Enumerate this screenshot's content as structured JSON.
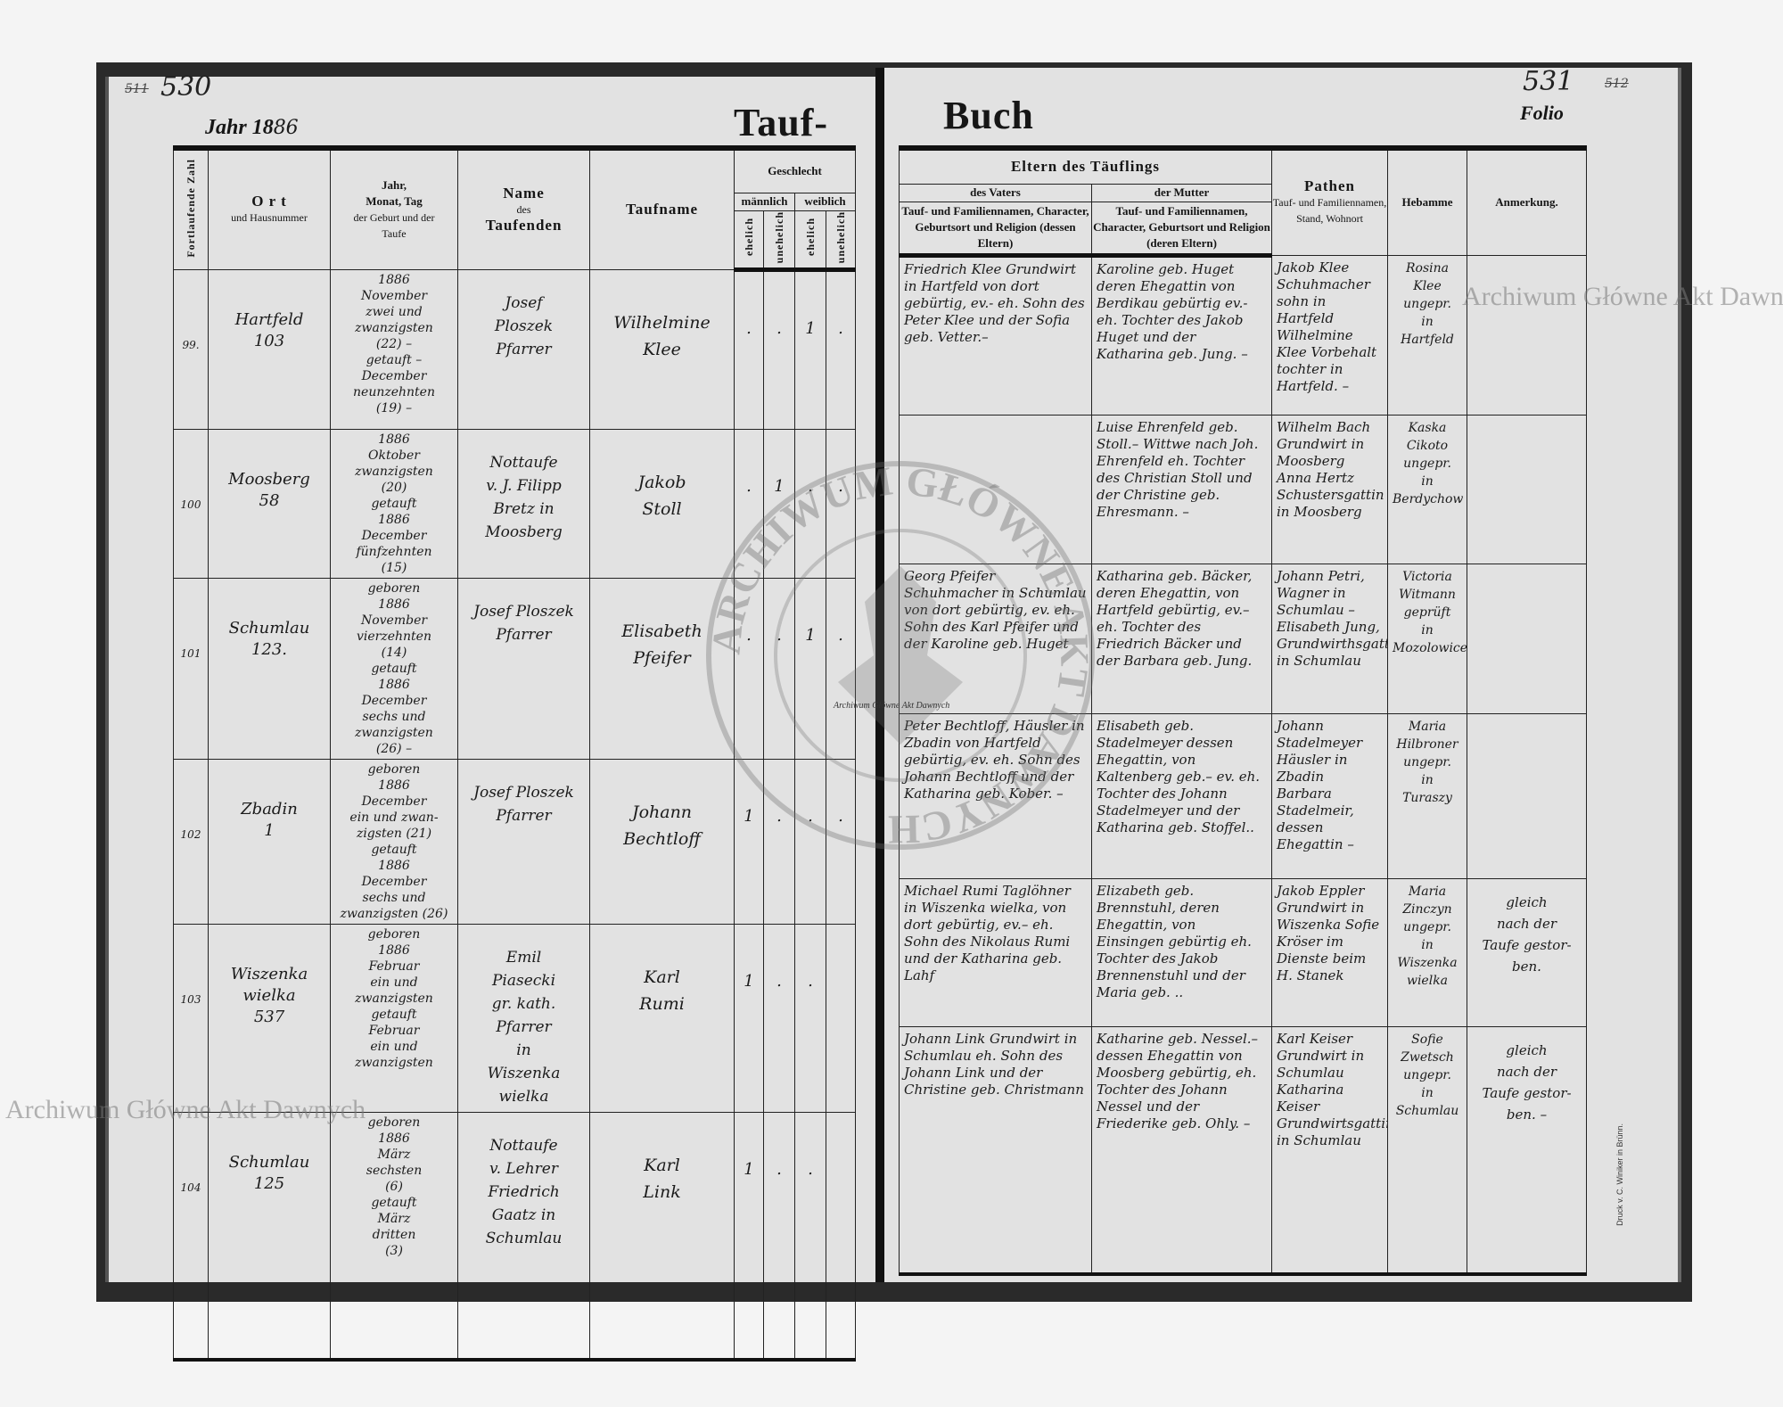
{
  "left_page": {
    "page_number": "530",
    "old_page_number": "511",
    "year_label": "Jahr 18",
    "year_handwritten": "86",
    "title_part": "Tauf-"
  },
  "right_page": {
    "page_number": "531",
    "old_page_number": "512",
    "title_part": "Buch",
    "folio_label": "Folio"
  },
  "headers": {
    "nr": "Fortlaufende Zahl",
    "ort_1": "O r t",
    "ort_2": "und Hausnummer",
    "date_1": "Jahr,",
    "date_2": "Monat, Tag",
    "date_3": "der Geburt und der",
    "date_4": "Taufe",
    "name_1": "Name",
    "name_2": "des",
    "name_3": "Taufenden",
    "taufname": "Taufname",
    "geschlecht": "Geschlecht",
    "maennlich": "männlich",
    "weiblich": "weiblich",
    "ehelich": "ehelich",
    "unehelich": "unehelich",
    "eltern": "Eltern des Täuflings",
    "vater": "des Vaters",
    "mutter": "der Mutter",
    "vater_desc": "Tauf- und Familiennamen, Character, Geburtsort und Religion (dessen Eltern)",
    "mutter_desc": "Tauf- und Familiennamen, Character, Geburtsort und Religion (deren Eltern)",
    "pathen": "Pathen",
    "pathen_desc": "Tauf- und Familiennamen, Stand, Wohnort",
    "hebamme": "Hebamme",
    "anmerkung": "Anmerkung."
  },
  "entries": [
    {
      "nr": "99.",
      "ort": "Hartfeld\n103",
      "dates": "1886\nNovember\nzwei und\nzwanzigsten\n(22) –\ngetauft –\nDecember\nneunzehnten\n(19) –",
      "taufende": "Josef\nPloszek\nPfarrer",
      "taufname": "Wilhelmine\nKlee",
      "gender": [
        ".",
        ".",
        "1",
        "."
      ],
      "vater": "Friedrich Klee Grundwirt in Hartfeld von dort gebürtig, ev.- eh. Sohn des Peter Klee und der Sofia geb. Vetter.–",
      "mutter": "Karoline geb. Huget deren Ehegattin von Berdikau gebürtig ev.- eh. Tochter des Jakob Huget und der Katharina geb. Jung. –",
      "pathen": "Jakob Klee Schuhmacher sohn in Hartfeld Wilhelmine Klee Vorbehalt tochter in Hartfeld. –",
      "hebamme": "Rosina\nKlee\nungepr.\nin\nHartfeld",
      "anmerkung": ""
    },
    {
      "nr": "100",
      "ort": "Moosberg\n58",
      "dates": "1886\nOktober\nzwanzigsten\n(20)\ngetauft\n1886\nDecember\nfünfzehnten\n(15)",
      "taufende": "Nottaufe\nv. J. Filipp\nBretz in\nMoosberg",
      "taufname": "Jakob\nStoll",
      "gender": [
        ".",
        "1",
        ".",
        "."
      ],
      "vater": "",
      "mutter": "Luise Ehrenfeld geb. Stoll.– Wittwe nach Joh. Ehrenfeld eh. Tochter des Christian Stoll und der Christine geb. Ehresmann. –",
      "pathen": "Wilhelm Bach Grundwirt in Moosberg Anna Hertz Schustersgattin in Moosberg",
      "hebamme": "Kaska\nCikoto\nungepr.\nin\nBerdychow",
      "anmerkung": ""
    },
    {
      "nr": "101",
      "ort": "Schumlau\n123.",
      "dates": "geboren\n1886\nNovember\nvierzehnten\n(14)\ngetauft\n1886\nDecember\nsechs und\nzwanzigsten\n(26) –",
      "taufende": "Josef Ploszek\nPfarrer",
      "taufname": "Elisabeth\nPfeifer",
      "gender": [
        ".",
        ".",
        "1",
        "."
      ],
      "vater": "Georg Pfeifer Schuhmacher in Schumlau von dort gebürtig, ev. eh. Sohn des Karl Pfeifer und der Karoline geb. Huget",
      "mutter": "Katharina geb. Bäcker, deren Ehegattin, von Hartfeld gebürtig, ev.– eh. Tochter des Friedrich Bäcker und der Barbara geb. Jung.",
      "pathen": "Johann Petri, Wagner in Schumlau – Elisabeth Jung, Grundwirthsgattin in Schumlau",
      "hebamme": "Victoria\nWitmann\ngeprüft\nin\nMozolowice.",
      "anmerkung": ""
    },
    {
      "nr": "102",
      "ort": "Zbadin\n1",
      "dates": "geboren\n1886\nDecember\nein und zwan-\nzigsten (21)\ngetauft\n1886\nDecember\nsechs und\nzwanzigsten (26)",
      "taufende": "Josef Ploszek\nPfarrer",
      "taufname": "Johann\nBechtloff",
      "gender": [
        "1",
        ".",
        ".",
        "."
      ],
      "vater": "Peter Bechtloff, Häusler in Zbadin von Hartfeld gebürtig, ev. eh. Sohn des Johann Bechtloff und der Katharina geb. Kober. –",
      "mutter": "Elisabeth geb. Stadelmeyer dessen Ehegattin, von Kaltenberg geb.– ev. eh. Tochter des Johann Stadelmeyer und der Katharina geb. Stoffel..",
      "pathen": "Johann Stadelmeyer Häusler in Zbadin Barbara Stadelmeir, dessen Ehegattin –",
      "hebamme": "Maria\nHilbroner\nungepr.\nin\nTuraszy",
      "anmerkung": ""
    },
    {
      "nr": "103",
      "ort": "Wiszenka\nwielka\n537",
      "dates": "geboren\n1886\nFebruar\nein und\nzwanzigsten\ngetauft\nFebruar\nein und\nzwanzigsten",
      "taufende": "Emil\nPiasecki\ngr. kath. Pfarrer\nin\nWiszenka\nwielka",
      "taufname": "Karl\nRumi",
      "gender": [
        "1",
        ".",
        ".",
        ""
      ],
      "vater": "Michael Rumi Taglöhner in Wiszenka wielka, von dort gebürtig, ev.– eh. Sohn des Nikolaus Rumi und der Katharina geb. Lahf",
      "mutter": "Elizabeth geb. Brennstuhl, deren Ehegattin, von Einsingen gebürtig eh. Tochter des Jakob Brennenstuhl und der Maria geb. ..",
      "pathen": "Jakob Eppler Grundwirt in Wiszenka Sofie Kröser im Dienste beim H. Stanek",
      "hebamme": "Maria\nZinczyn\nungepr.\nin\nWiszenka\nwielka",
      "anmerkung": "gleich\nnach der\nTaufe gestor-\nben."
    },
    {
      "nr": "104",
      "ort": "Schumlau\n125",
      "dates": "geboren\n1886\nMärz\nsechsten\n(6)\ngetauft\nMärz\ndritten\n(3)",
      "taufende": "Nottaufe\nv. Lehrer\nFriedrich\nGaatz in\nSchumlau",
      "taufname": "Karl\nLink",
      "gender": [
        "1",
        ".",
        ".",
        ""
      ],
      "vater": "Johann Link Grundwirt in Schumlau eh. Sohn des Johann Link und der Christine geb. Christmann",
      "mutter": "Katharine geb. Nessel.– dessen Ehegattin von Moosberg gebürtig, eh. Tochter des Johann Nessel und der Friederike geb. Ohly. –",
      "pathen": "Karl Keiser Grundwirt in Schumlau Katharina Keiser Grundwirtsgattin in Schumlau",
      "hebamme": "Sofie\nZwetsch\nungepr.\nin\nSchumlau",
      "anmerkung": "gleich\nnach der\nTaufe gestor-\nben. –"
    }
  ],
  "watermark": {
    "text": "Archiwum Główne Akt Dawnych",
    "stamp_text": "ARCHIWUM GŁÓWNE AKT DAWNYCH"
  },
  "printer_note": "Druck v. C. Winiker in Brünn."
}
